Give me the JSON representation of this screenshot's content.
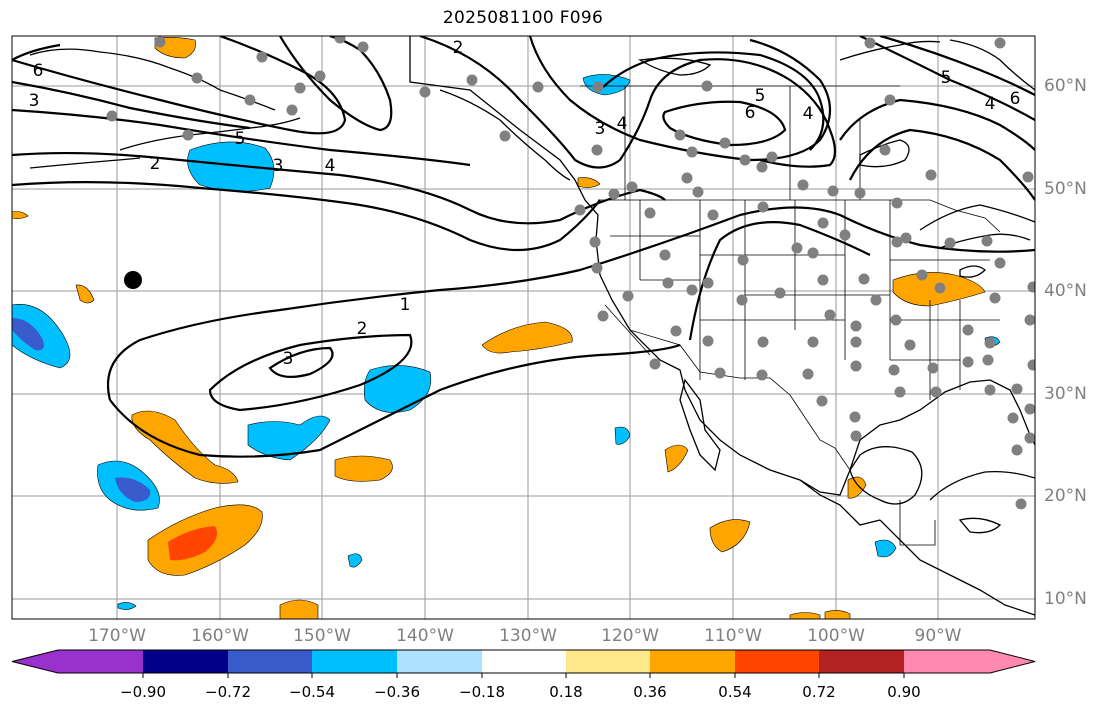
{
  "title": "2025081100 F096",
  "axes": {
    "lon_labels": [
      "170°W",
      "160°W",
      "150°W",
      "140°W",
      "130°W",
      "120°W",
      "110°W",
      "100°W",
      "90°W"
    ],
    "lat_labels": [
      "60°N",
      "50°N",
      "40°N",
      "30°N",
      "20°N",
      "10°N"
    ],
    "label_color": "#808080",
    "grid": true
  },
  "contours": {
    "line_color": "#000000",
    "labels": [
      "6",
      "3",
      "2",
      "5",
      "3",
      "4",
      "1",
      "2",
      "3",
      "3",
      "4",
      "5",
      "6",
      "4",
      "5",
      "4",
      "6",
      "2"
    ]
  },
  "colorbar": {
    "ticks": [
      "−0.90",
      "−0.72",
      "−0.54",
      "−0.36",
      "−0.18",
      "0.18",
      "0.36",
      "0.54",
      "0.72",
      "0.90"
    ],
    "colors": [
      "#9932cc",
      "#00008b",
      "#3a5bcc",
      "#00bfff",
      "#aee0ff",
      "#ffffff",
      "#ffe88a",
      "#ffa500",
      "#ff4500",
      "#b22222",
      "#ff89b0"
    ]
  },
  "markers": {
    "station_color": "#808080",
    "highlight_color": "#000000"
  }
}
